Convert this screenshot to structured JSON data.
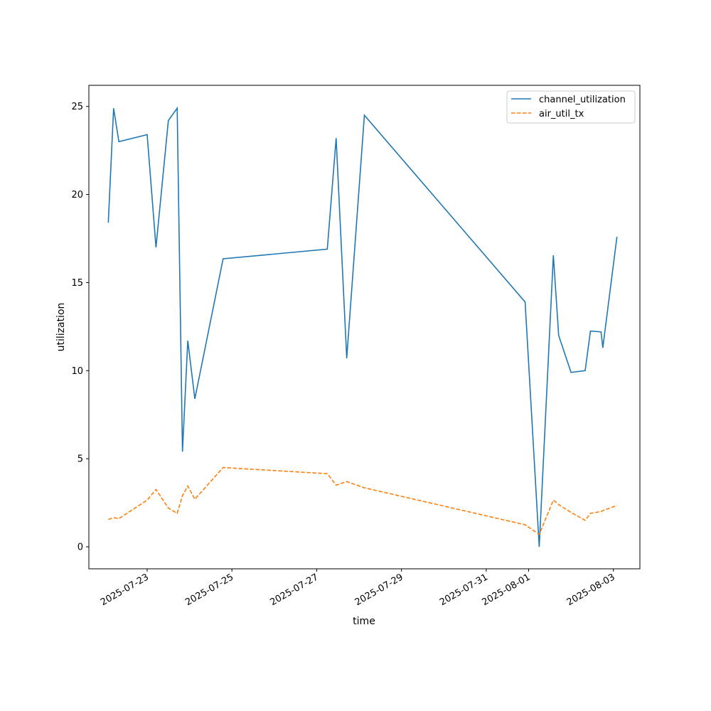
{
  "chart_data": {
    "type": "line",
    "title": "",
    "xlabel": "time",
    "ylabel": "utilization",
    "xlim": [
      "2025-07-21T15:00",
      "2025-08-03T15:00"
    ],
    "ylim": [
      -1.25,
      26.2
    ],
    "x_ticks": [
      "2025-07-23",
      "2025-07-25",
      "2025-07-27",
      "2025-07-29",
      "2025-07-31",
      "2025-08-01",
      "2025-08-03"
    ],
    "y_ticks": [
      0,
      5,
      10,
      15,
      20,
      25
    ],
    "grid": false,
    "legend_position": "top-right",
    "series": [
      {
        "name": "channel_utilization",
        "color": "#1f77b4",
        "dash": "solid",
        "points": [
          [
            "2025-07-22T02:00",
            18.4
          ],
          [
            "2025-07-22T05:00",
            24.9
          ],
          [
            "2025-07-22T08:00",
            23.0
          ],
          [
            "2025-07-23T00:00",
            23.4
          ],
          [
            "2025-07-23T05:00",
            17.0
          ],
          [
            "2025-07-23T12:00",
            24.2
          ],
          [
            "2025-07-23T17:00",
            24.9
          ],
          [
            "2025-07-23T20:00",
            5.4
          ],
          [
            "2025-07-23T23:00",
            11.7
          ],
          [
            "2025-07-24T03:00",
            8.4
          ],
          [
            "2025-07-24T19:00",
            16.35
          ],
          [
            "2025-07-27T06:00",
            16.9
          ],
          [
            "2025-07-27T11:00",
            23.2
          ],
          [
            "2025-07-27T17:00",
            10.7
          ],
          [
            "2025-07-28T03:00",
            24.5
          ],
          [
            "2025-07-31T22:00",
            13.9
          ],
          [
            "2025-08-01T06:00",
            0.0
          ],
          [
            "2025-08-01T14:00",
            16.55
          ],
          [
            "2025-08-01T17:00",
            12.0
          ],
          [
            "2025-08-02T00:00",
            9.9
          ],
          [
            "2025-08-02T08:00",
            10.0
          ],
          [
            "2025-08-02T11:00",
            12.25
          ],
          [
            "2025-08-02T17:00",
            12.2
          ],
          [
            "2025-08-02T18:00",
            11.3
          ],
          [
            "2025-08-03T02:00",
            17.6
          ]
        ]
      },
      {
        "name": "air_util_tx",
        "color": "#ff7f0e",
        "dash": "dashed",
        "points": [
          [
            "2025-07-22T02:00",
            1.55
          ],
          [
            "2025-07-22T05:00",
            1.65
          ],
          [
            "2025-07-22T08:00",
            1.6
          ],
          [
            "2025-07-23T00:00",
            2.65
          ],
          [
            "2025-07-23T05:00",
            3.25
          ],
          [
            "2025-07-23T12:00",
            2.2
          ],
          [
            "2025-07-23T17:00",
            1.9
          ],
          [
            "2025-07-23T20:00",
            2.9
          ],
          [
            "2025-07-23T23:00",
            3.45
          ],
          [
            "2025-07-24T03:00",
            2.7
          ],
          [
            "2025-07-24T19:00",
            4.5
          ],
          [
            "2025-07-27T06:00",
            4.15
          ],
          [
            "2025-07-27T11:00",
            3.5
          ],
          [
            "2025-07-27T17:00",
            3.7
          ],
          [
            "2025-07-28T03:00",
            3.35
          ],
          [
            "2025-07-31T22:00",
            1.25
          ],
          [
            "2025-08-01T06:00",
            0.7
          ],
          [
            "2025-08-01T14:00",
            2.65
          ],
          [
            "2025-08-01T17:00",
            2.4
          ],
          [
            "2025-08-02T00:00",
            1.95
          ],
          [
            "2025-08-02T08:00",
            1.5
          ],
          [
            "2025-08-02T11:00",
            1.9
          ],
          [
            "2025-08-02T17:00",
            2.0
          ],
          [
            "2025-08-02T18:00",
            2.05
          ],
          [
            "2025-08-03T02:00",
            2.35
          ]
        ]
      }
    ]
  }
}
